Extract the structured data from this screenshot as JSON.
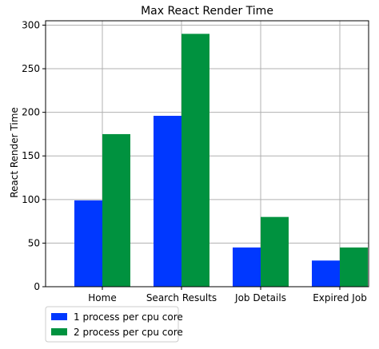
{
  "chart_data": {
    "type": "bar",
    "title": "Max React Render Time",
    "xlabel": "",
    "ylabel": "React Render Time",
    "categories": [
      "Home",
      "Search Results",
      "Job Details",
      "Expired Job"
    ],
    "series": [
      {
        "name": "1 process per cpu core",
        "values": [
          99,
          196,
          45,
          30
        ],
        "color": "#0038ff"
      },
      {
        "name": "2 process per cpu core",
        "values": [
          175,
          290,
          80,
          45
        ],
        "color": "#00923f"
      }
    ],
    "ylim": [
      0,
      305
    ],
    "yticks": [
      0,
      50,
      100,
      150,
      200,
      250,
      300
    ],
    "grid": true,
    "legend_position": "bottom-left, below plot"
  }
}
